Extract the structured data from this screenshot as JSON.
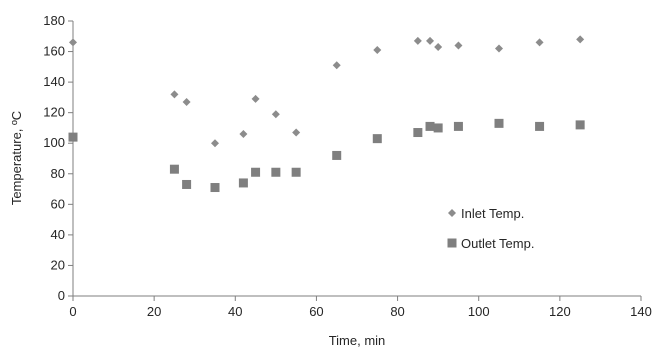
{
  "chart_data": {
    "type": "scatter",
    "xlabel": "Time, min",
    "ylabel": "Temperature, ºC",
    "xlim": [
      0,
      140
    ],
    "ylim": [
      0,
      180
    ],
    "xticks": [
      0,
      20,
      40,
      60,
      80,
      100,
      120,
      140
    ],
    "yticks": [
      0,
      20,
      40,
      60,
      80,
      100,
      120,
      140,
      160,
      180
    ],
    "grid": false,
    "legend_position": "right",
    "series": [
      {
        "name": "Inlet Temp.",
        "marker": "diamond",
        "color": "#8c8c8c",
        "points": [
          {
            "x": 0,
            "y": 166
          },
          {
            "x": 25,
            "y": 132
          },
          {
            "x": 28,
            "y": 127
          },
          {
            "x": 35,
            "y": 100
          },
          {
            "x": 42,
            "y": 106
          },
          {
            "x": 45,
            "y": 129
          },
          {
            "x": 50,
            "y": 119
          },
          {
            "x": 55,
            "y": 107
          },
          {
            "x": 65,
            "y": 151
          },
          {
            "x": 75,
            "y": 161
          },
          {
            "x": 85,
            "y": 167
          },
          {
            "x": 88,
            "y": 167
          },
          {
            "x": 90,
            "y": 163
          },
          {
            "x": 95,
            "y": 164
          },
          {
            "x": 105,
            "y": 162
          },
          {
            "x": 115,
            "y": 166
          },
          {
            "x": 125,
            "y": 168
          }
        ]
      },
      {
        "name": "Outlet Temp.",
        "marker": "square",
        "color": "#7f7f7f",
        "points": [
          {
            "x": 0,
            "y": 104
          },
          {
            "x": 25,
            "y": 83
          },
          {
            "x": 28,
            "y": 73
          },
          {
            "x": 35,
            "y": 71
          },
          {
            "x": 42,
            "y": 74
          },
          {
            "x": 45,
            "y": 81
          },
          {
            "x": 50,
            "y": 81
          },
          {
            "x": 55,
            "y": 81
          },
          {
            "x": 65,
            "y": 92
          },
          {
            "x": 75,
            "y": 103
          },
          {
            "x": 85,
            "y": 107
          },
          {
            "x": 88,
            "y": 111
          },
          {
            "x": 90,
            "y": 110
          },
          {
            "x": 95,
            "y": 111
          },
          {
            "x": 105,
            "y": 113
          },
          {
            "x": 115,
            "y": 111
          },
          {
            "x": 125,
            "y": 112
          }
        ]
      }
    ],
    "axis_color": "#7f7f7f"
  }
}
